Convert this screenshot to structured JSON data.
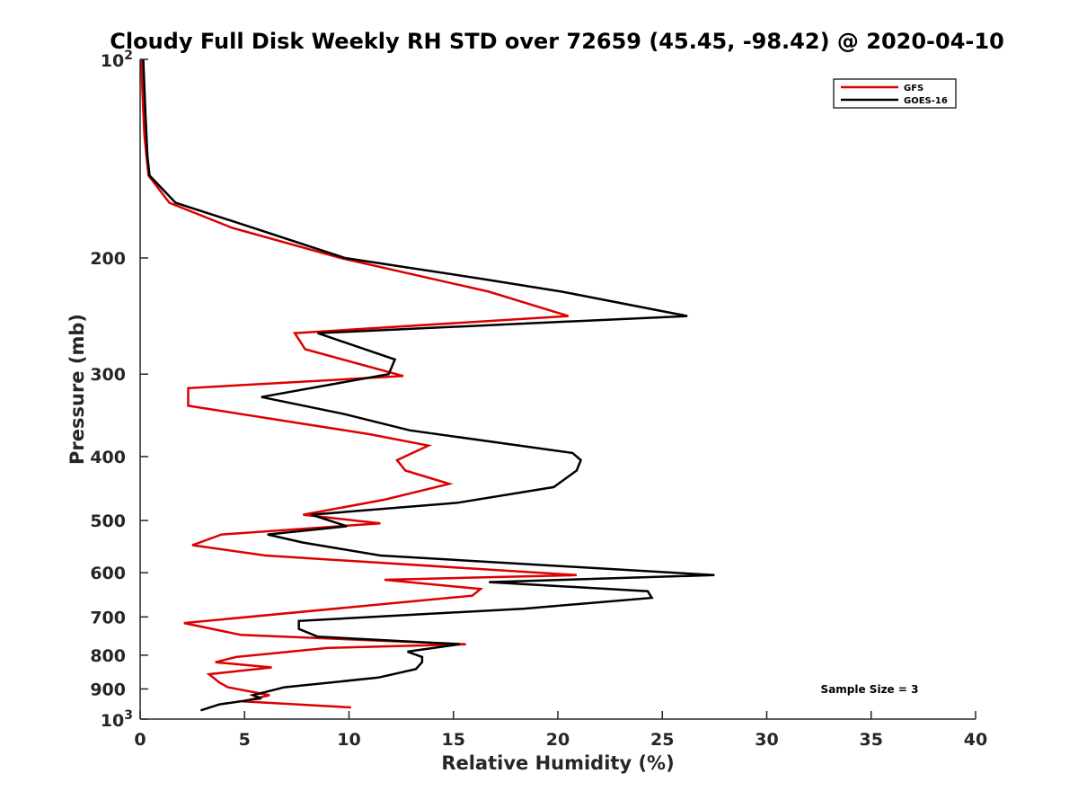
{
  "chart_data": {
    "type": "line",
    "title": "Cloudy Full Disk Weekly RH STD over 72659 (45.45, -98.42) @ 2020-04-10",
    "xlabel": "Relative Humidity (%)",
    "ylabel": "Pressure (mb)",
    "xlim": [
      0,
      40
    ],
    "ylim": [
      100,
      1000
    ],
    "y_scale": "log",
    "y_reversed": true,
    "x_ticks": [
      "0",
      "5",
      "10",
      "15",
      "20",
      "25",
      "30",
      "35",
      "40"
    ],
    "y_ticks": [
      {
        "value": 100,
        "base": "10",
        "exp": "2"
      },
      {
        "value": 200,
        "label": "200"
      },
      {
        "value": 300,
        "label": "300"
      },
      {
        "value": 400,
        "label": "400"
      },
      {
        "value": 500,
        "label": "500"
      },
      {
        "value": 600,
        "label": "600"
      },
      {
        "value": 700,
        "label": "700"
      },
      {
        "value": 800,
        "label": "800"
      },
      {
        "value": 900,
        "label": "900"
      },
      {
        "value": 1000,
        "base": "10",
        "exp": "3"
      }
    ],
    "grid": false,
    "legend_position": "top-right",
    "annotation": "Sample Size = 3",
    "series": [
      {
        "name": "GFS",
        "color": "#dd0000",
        "points": [
          [
            0.05,
            100
          ],
          [
            0.1,
            110
          ],
          [
            0.15,
            120
          ],
          [
            0.2,
            130
          ],
          [
            0.3,
            140
          ],
          [
            0.4,
            150
          ],
          [
            1.4,
            165
          ],
          [
            4.4,
            180
          ],
          [
            9.6,
            200
          ],
          [
            16.7,
            225
          ],
          [
            20.5,
            245
          ],
          [
            7.4,
            260
          ],
          [
            7.9,
            275
          ],
          [
            12.6,
            302
          ],
          [
            2.3,
            315
          ],
          [
            2.3,
            335
          ],
          [
            11.0,
            370
          ],
          [
            13.8,
            385
          ],
          [
            12.3,
            405
          ],
          [
            12.7,
            420
          ],
          [
            14.8,
            440
          ],
          [
            11.7,
            465
          ],
          [
            7.8,
            490
          ],
          [
            11.5,
            505
          ],
          [
            3.9,
            525
          ],
          [
            2.5,
            545
          ],
          [
            6.0,
            565
          ],
          [
            20.9,
            605
          ],
          [
            11.7,
            615
          ],
          [
            16.3,
            635
          ],
          [
            15.9,
            650
          ],
          [
            2.1,
            715
          ],
          [
            4.8,
            745
          ],
          [
            15.6,
            770
          ],
          [
            9.0,
            780
          ],
          [
            4.6,
            805
          ],
          [
            3.6,
            820
          ],
          [
            6.3,
            835
          ],
          [
            3.3,
            855
          ],
          [
            3.8,
            880
          ],
          [
            4.2,
            895
          ],
          [
            6.2,
            920
          ],
          [
            4.9,
            940
          ],
          [
            10.1,
            960
          ]
        ]
      },
      {
        "name": "GOES-16",
        "color": "#000000",
        "points": [
          [
            0.15,
            100
          ],
          [
            0.2,
            110
          ],
          [
            0.25,
            120
          ],
          [
            0.3,
            130
          ],
          [
            0.35,
            140
          ],
          [
            0.45,
            150
          ],
          [
            1.7,
            165
          ],
          [
            5.4,
            180
          ],
          [
            9.8,
            200
          ],
          [
            16.3,
            215
          ],
          [
            20.2,
            225
          ],
          [
            26.2,
            245
          ],
          [
            8.5,
            260
          ],
          [
            12.2,
            285
          ],
          [
            11.9,
            300
          ],
          [
            5.8,
            325
          ],
          [
            9.8,
            345
          ],
          [
            12.9,
            365
          ],
          [
            20.7,
            395
          ],
          [
            21.1,
            405
          ],
          [
            20.9,
            420
          ],
          [
            19.8,
            445
          ],
          [
            15.2,
            470
          ],
          [
            8.2,
            490
          ],
          [
            9.9,
            510
          ],
          [
            6.1,
            525
          ],
          [
            7.8,
            540
          ],
          [
            11.5,
            565
          ],
          [
            27.5,
            605
          ],
          [
            16.7,
            620
          ],
          [
            24.3,
            640
          ],
          [
            24.5,
            655
          ],
          [
            18.4,
            680
          ],
          [
            7.6,
            710
          ],
          [
            7.6,
            730
          ],
          [
            8.5,
            750
          ],
          [
            15.3,
            770
          ],
          [
            12.8,
            790
          ],
          [
            13.5,
            805
          ],
          [
            13.5,
            820
          ],
          [
            13.2,
            840
          ],
          [
            11.4,
            865
          ],
          [
            6.9,
            895
          ],
          [
            5.4,
            920
          ],
          [
            5.8,
            930
          ],
          [
            3.8,
            950
          ],
          [
            2.9,
            970
          ]
        ]
      }
    ]
  }
}
